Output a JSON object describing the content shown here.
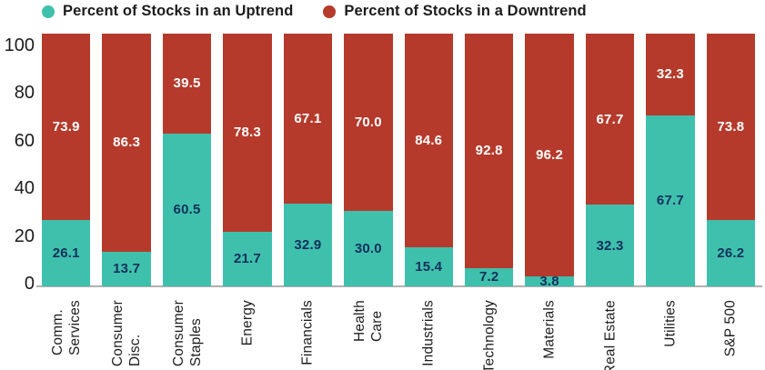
{
  "legend": {
    "items": [
      {
        "label": "Percent of Stocks in an Uptrend",
        "color": "#3fc0ad"
      },
      {
        "label": "Percent of Stocks in a Downtrend",
        "color": "#b53a2b"
      }
    ]
  },
  "colors": {
    "uptrend": "#3fc0ad",
    "downtrend": "#b53a2b",
    "uptrend_value_text": "#13305b",
    "downtrend_value_text": "#ffffff",
    "axis_line": "#b0b0b0",
    "text": "#1c1c1c"
  },
  "chart_data": {
    "type": "bar",
    "stacked": true,
    "orientation": "vertical",
    "title": "",
    "xlabel": "",
    "ylabel": "",
    "ylim": [
      0,
      100
    ],
    "y_ticks": [
      0,
      20,
      40,
      60,
      80,
      100
    ],
    "grid": false,
    "legend_position": "top",
    "value_labels_decimals": 1,
    "categories": [
      "Comm.\nServices",
      "Consumer\nDisc.",
      "Consumer\nStaples",
      "Energy",
      "Financials",
      "Health\nCare",
      "Industrials",
      "Technology",
      "Materials",
      "Real Estate",
      "Utilities",
      "S&P 500"
    ],
    "series": [
      {
        "name": "Percent of Stocks in an Uptrend",
        "color": "#3fc0ad",
        "values": [
          26.1,
          13.7,
          60.5,
          21.7,
          32.9,
          30.0,
          15.4,
          7.2,
          3.8,
          32.3,
          67.7,
          26.2
        ]
      },
      {
        "name": "Percent of Stocks in a Downtrend",
        "color": "#b53a2b",
        "values": [
          73.9,
          86.3,
          39.5,
          78.3,
          67.1,
          70.0,
          84.6,
          92.8,
          96.2,
          67.7,
          32.3,
          73.8
        ]
      }
    ]
  }
}
